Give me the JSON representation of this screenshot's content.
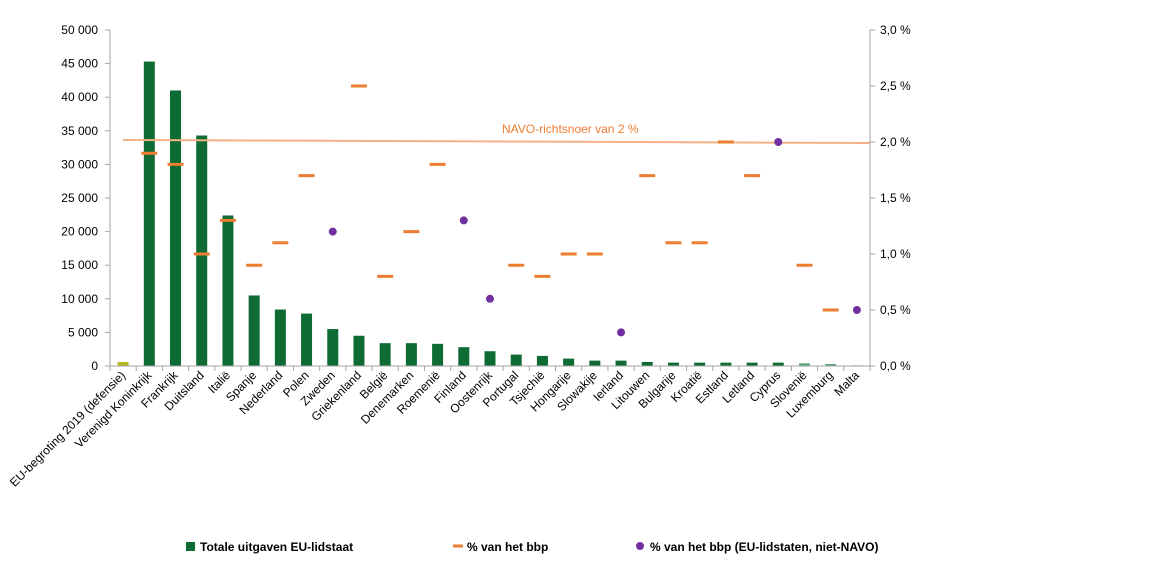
{
  "chart_data": {
    "type": "bar",
    "categories": [
      "EU-begroting 2019 (defensie)",
      "Verenigd Koninkrijk",
      "Frankrijk",
      "Duitsland",
      "Italië",
      "Spanje",
      "Nederland",
      "Polen",
      "Zweden",
      "Griekenland",
      "België",
      "Denemarken",
      "Roemenië",
      "Finland",
      "Oostenrijk",
      "Portugal",
      "Tsjechië",
      "Hongarije",
      "Slowakije",
      "Ierland",
      "Litouwen",
      "Bulgarije",
      "Kroatië",
      "Estland",
      "Letland",
      "Cyprus",
      "Slovenië",
      "Luxemburg",
      "Malta"
    ],
    "series": [
      {
        "name": "Totale uitgaven EU-lidstaat",
        "type": "bar",
        "axis": "left",
        "values": [
          600,
          45300,
          41000,
          34300,
          22400,
          10500,
          8400,
          7800,
          5500,
          4500,
          3400,
          3400,
          3300,
          2800,
          2200,
          1700,
          1500,
          1100,
          800,
          800,
          600,
          500,
          500,
          500,
          500,
          500,
          400,
          300,
          100
        ]
      },
      {
        "name": "% van het bbp",
        "type": "marker-dash",
        "axis": "right",
        "values": [
          null,
          1.9,
          1.8,
          1.0,
          1.3,
          0.9,
          1.1,
          1.7,
          null,
          2.5,
          0.8,
          1.2,
          1.8,
          null,
          null,
          0.9,
          0.8,
          1.0,
          1.0,
          null,
          1.7,
          1.1,
          1.1,
          2.0,
          1.7,
          null,
          0.9,
          0.5,
          null
        ]
      },
      {
        "name": "% van het bbp (EU-lidstaten, niet-NAVO)",
        "type": "marker-dot",
        "axis": "right",
        "values": [
          null,
          null,
          null,
          null,
          null,
          null,
          null,
          null,
          1.2,
          null,
          null,
          null,
          null,
          1.3,
          0.6,
          null,
          null,
          null,
          null,
          0.3,
          null,
          null,
          null,
          null,
          null,
          2.0,
          null,
          null,
          0.5
        ]
      }
    ],
    "y_left": {
      "min": 0,
      "max": 50000,
      "ticks": [
        0,
        5000,
        10000,
        15000,
        20000,
        25000,
        30000,
        35000,
        40000,
        45000,
        50000
      ],
      "tick_labels": [
        "0",
        "5 000",
        "10 000",
        "15 000",
        "20 000",
        "25 000",
        "30 000",
        "35 000",
        "40 000",
        "45 000",
        "50 000"
      ]
    },
    "y_right": {
      "min": 0,
      "max": 3.0,
      "ticks": [
        0,
        0.5,
        1.0,
        1.5,
        2.0,
        2.5,
        3.0
      ],
      "tick_labels": [
        "0,0 %",
        "0,5 %",
        "1,0 %",
        "1,5 %",
        "2,0 %",
        "2,5 %",
        "3,0 %"
      ]
    },
    "reference_line": {
      "label": "NAVO-richtsnoer van 2 %",
      "value": 2.0,
      "axis": "right"
    },
    "grid": false,
    "legend": "bottom",
    "colors": {
      "bar": "#0e6b34",
      "bar_first": "#b5b822",
      "bar_last": "#5fa57c",
      "dash": "#ed7d31",
      "dot": "#7030a0",
      "ref_line": "#f4b183",
      "ref_label": "#ed7d31",
      "axis": "#a6a6a6"
    }
  }
}
